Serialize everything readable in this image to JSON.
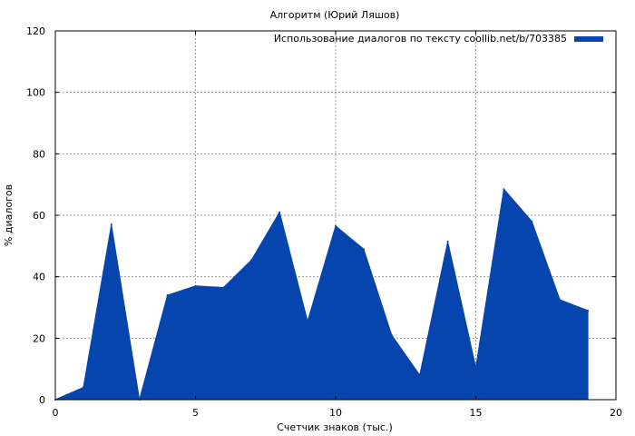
{
  "chart_data": {
    "type": "area",
    "title": "Алгоритм (Юрий Ляшов)",
    "xlabel": "Счетчик знаков (тыс.)",
    "ylabel": "% диалогов",
    "xlim": [
      0,
      20
    ],
    "ylim": [
      0,
      120
    ],
    "xticks": [
      "0",
      "5",
      "10",
      "15",
      "20"
    ],
    "yticks": [
      "0",
      "20",
      "40",
      "60",
      "80",
      "100",
      "120"
    ],
    "grid": true,
    "legend_position": "top-right",
    "series": [
      {
        "name": "Использование диалогов по тексту coollib.net/b/703385",
        "color": "#0645ad",
        "x": [
          0,
          1,
          2,
          3,
          4,
          5,
          6,
          7,
          8,
          9,
          10,
          11,
          12,
          13,
          14,
          15,
          16,
          17,
          18,
          19
        ],
        "values": [
          0,
          4,
          57,
          0,
          34,
          37,
          36.5,
          45.5,
          61,
          25.5,
          56.5,
          49,
          21,
          8,
          51.5,
          10.5,
          68.5,
          58,
          32.5,
          29
        ]
      }
    ]
  }
}
